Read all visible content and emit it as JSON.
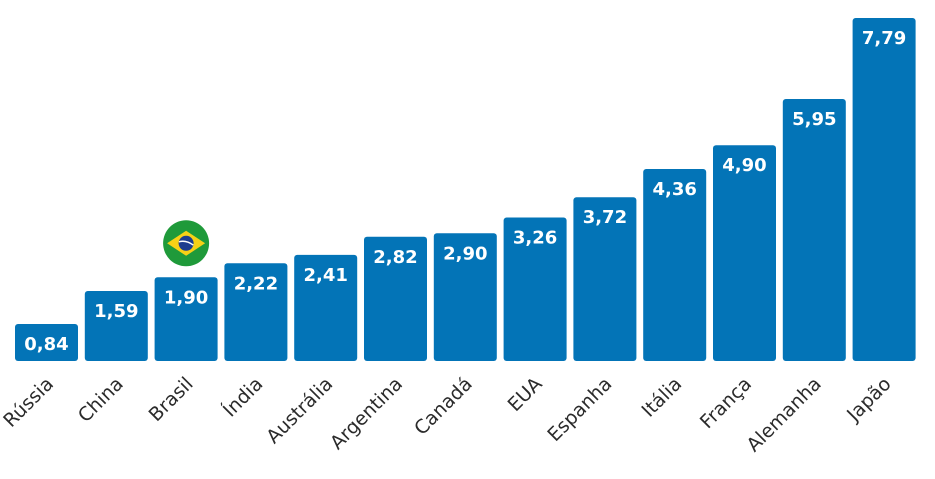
{
  "chart_data": {
    "type": "bar",
    "categories": [
      "Rússia",
      "China",
      "Brasil",
      "Índia",
      "Austrália",
      "Argentina",
      "Canadá",
      "EUA",
      "Espanha",
      "Itália",
      "França",
      "Alemanha",
      "Japão"
    ],
    "values": [
      0.84,
      1.59,
      1.9,
      2.22,
      2.41,
      2.82,
      2.9,
      3.26,
      3.72,
      4.36,
      4.9,
      5.95,
      7.79
    ],
    "value_labels": [
      "0,84",
      "1,59",
      "1,90",
      "2,22",
      "2,41",
      "2,82",
      "2,90",
      "3,26",
      "3,72",
      "4,36",
      "4,90",
      "5,95",
      "7,79"
    ],
    "highlight": {
      "category": "Brasil",
      "icon": "brazil-flag-icon"
    },
    "bar_color": "#0374b7",
    "value_label_color": "#ffffff",
    "category_label_color": "#2b2b2b",
    "grid": false,
    "legend": "none"
  }
}
